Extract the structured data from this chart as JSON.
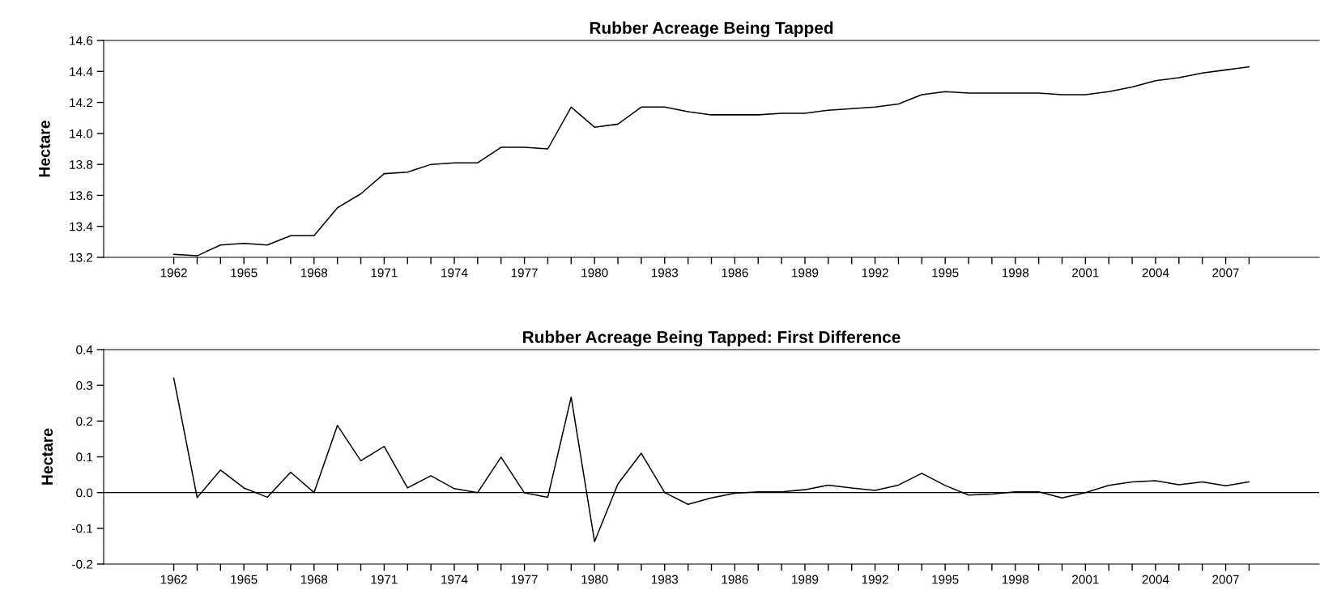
{
  "chart_data": [
    {
      "type": "line",
      "title": "Rubber Acreage Being Tapped",
      "ylabel": "Hectare",
      "x": [
        1962,
        1963,
        1964,
        1965,
        1966,
        1967,
        1968,
        1969,
        1970,
        1971,
        1972,
        1973,
        1974,
        1975,
        1976,
        1977,
        1978,
        1979,
        1980,
        1981,
        1982,
        1983,
        1984,
        1985,
        1986,
        1987,
        1988,
        1989,
        1990,
        1991,
        1992,
        1993,
        1994,
        1995,
        1996,
        1997,
        1998,
        1999,
        2000,
        2001,
        2002,
        2003,
        2004,
        2005,
        2006,
        2007,
        2008
      ],
      "series": [
        {
          "color": "#000000",
          "values": [
            13.22,
            13.21,
            13.28,
            13.29,
            13.28,
            13.34,
            13.34,
            13.52,
            13.61,
            13.74,
            13.75,
            13.8,
            13.81,
            13.81,
            13.91,
            13.91,
            13.9,
            14.17,
            14.04,
            14.06,
            14.17,
            14.17,
            14.14,
            14.12,
            14.12,
            14.12,
            14.13,
            14.13,
            14.15,
            14.16,
            14.17,
            14.19,
            14.25,
            14.27,
            14.26,
            14.26,
            14.26,
            14.26,
            14.25,
            14.25,
            14.27,
            14.3,
            14.34,
            14.36,
            14.39,
            14.41,
            14.43
          ]
        }
      ],
      "xlim": [
        1959,
        2011
      ],
      "xticks": [
        {
          "value": 1962,
          "label": "1962"
        },
        {
          "value": 1963,
          "label": null
        },
        {
          "value": 1964,
          "label": null
        },
        {
          "value": 1965,
          "label": "1965"
        },
        {
          "value": 1966,
          "label": null
        },
        {
          "value": 1967,
          "label": null
        },
        {
          "value": 1968,
          "label": "1968"
        },
        {
          "value": 1969,
          "label": null
        },
        {
          "value": 1970,
          "label": null
        },
        {
          "value": 1971,
          "label": "1971"
        },
        {
          "value": 1972,
          "label": null
        },
        {
          "value": 1973,
          "label": null
        },
        {
          "value": 1974,
          "label": "1974"
        },
        {
          "value": 1975,
          "label": null
        },
        {
          "value": 1976,
          "label": null
        },
        {
          "value": 1977,
          "label": "1977"
        },
        {
          "value": 1978,
          "label": null
        },
        {
          "value": 1979,
          "label": null
        },
        {
          "value": 1980,
          "label": "1980"
        },
        {
          "value": 1981,
          "label": null
        },
        {
          "value": 1982,
          "label": null
        },
        {
          "value": 1983,
          "label": "1983"
        },
        {
          "value": 1984,
          "label": null
        },
        {
          "value": 1985,
          "label": null
        },
        {
          "value": 1986,
          "label": "1986"
        },
        {
          "value": 1987,
          "label": null
        },
        {
          "value": 1988,
          "label": null
        },
        {
          "value": 1989,
          "label": "1989"
        },
        {
          "value": 1990,
          "label": null
        },
        {
          "value": 1991,
          "label": null
        },
        {
          "value": 1992,
          "label": "1992"
        },
        {
          "value": 1993,
          "label": null
        },
        {
          "value": 1994,
          "label": null
        },
        {
          "value": 1995,
          "label": "1995"
        },
        {
          "value": 1996,
          "label": null
        },
        {
          "value": 1997,
          "label": null
        },
        {
          "value": 1998,
          "label": "1998"
        },
        {
          "value": 1999,
          "label": null
        },
        {
          "value": 2000,
          "label": null
        },
        {
          "value": 2001,
          "label": "2001"
        },
        {
          "value": 2002,
          "label": null
        },
        {
          "value": 2003,
          "label": null
        },
        {
          "value": 2004,
          "label": "2004"
        },
        {
          "value": 2005,
          "label": null
        },
        {
          "value": 2006,
          "label": null
        },
        {
          "value": 2007,
          "label": "2007"
        },
        {
          "value": 2008,
          "label": null
        }
      ],
      "ylim": [
        13.2,
        14.6
      ],
      "yticks": [
        {
          "value": 13.2,
          "label": "13.2"
        },
        {
          "value": 13.4,
          "label": "13.4"
        },
        {
          "value": 13.6,
          "label": "13.6"
        },
        {
          "value": 13.8,
          "label": "13.8"
        },
        {
          "value": 14.0,
          "label": "14.0"
        },
        {
          "value": 14.2,
          "label": "14.2"
        },
        {
          "value": 14.4,
          "label": "14.4"
        },
        {
          "value": 14.6,
          "label": "14.6"
        }
      ],
      "grid": false,
      "legend": false
    },
    {
      "type": "line",
      "title": "Rubber Acreage Being Tapped: First Difference",
      "ylabel": "Hectare",
      "x": [
        1962,
        1963,
        1964,
        1965,
        1966,
        1967,
        1968,
        1969,
        1970,
        1971,
        1972,
        1973,
        1974,
        1975,
        1976,
        1977,
        1978,
        1979,
        1980,
        1981,
        1982,
        1983,
        1984,
        1985,
        1986,
        1987,
        1988,
        1989,
        1990,
        1991,
        1992,
        1993,
        1994,
        1995,
        1996,
        1997,
        1998,
        1999,
        2000,
        2001,
        2002,
        2003,
        2004,
        2005,
        2006,
        2007,
        2008
      ],
      "series": [
        {
          "color": "#000000",
          "values": [
            0.32,
            -0.014,
            0.063,
            0.013,
            -0.013,
            0.057,
            0.0,
            0.188,
            0.089,
            0.129,
            0.013,
            0.047,
            0.011,
            0.0,
            0.099,
            -0.001,
            -0.013,
            0.267,
            -0.137,
            0.024,
            0.11,
            0.0,
            -0.033,
            -0.015,
            -0.002,
            0.002,
            0.002,
            0.008,
            0.021,
            0.013,
            0.006,
            0.021,
            0.054,
            0.02,
            -0.007,
            -0.004,
            0.002,
            0.002,
            -0.015,
            0.0,
            0.02,
            0.03,
            0.033,
            0.022,
            0.03,
            0.019,
            0.03
          ]
        }
      ],
      "xlim": [
        1959,
        2011
      ],
      "xticks": [
        {
          "value": 1962,
          "label": "1962"
        },
        {
          "value": 1963,
          "label": null
        },
        {
          "value": 1964,
          "label": null
        },
        {
          "value": 1965,
          "label": "1965"
        },
        {
          "value": 1966,
          "label": null
        },
        {
          "value": 1967,
          "label": null
        },
        {
          "value": 1968,
          "label": "1968"
        },
        {
          "value": 1969,
          "label": null
        },
        {
          "value": 1970,
          "label": null
        },
        {
          "value": 1971,
          "label": "1971"
        },
        {
          "value": 1972,
          "label": null
        },
        {
          "value": 1973,
          "label": null
        },
        {
          "value": 1974,
          "label": "1974"
        },
        {
          "value": 1975,
          "label": null
        },
        {
          "value": 1976,
          "label": null
        },
        {
          "value": 1977,
          "label": "1977"
        },
        {
          "value": 1978,
          "label": null
        },
        {
          "value": 1979,
          "label": null
        },
        {
          "value": 1980,
          "label": "1980"
        },
        {
          "value": 1981,
          "label": null
        },
        {
          "value": 1982,
          "label": null
        },
        {
          "value": 1983,
          "label": "1983"
        },
        {
          "value": 1984,
          "label": null
        },
        {
          "value": 1985,
          "label": null
        },
        {
          "value": 1986,
          "label": "1986"
        },
        {
          "value": 1987,
          "label": null
        },
        {
          "value": 1988,
          "label": null
        },
        {
          "value": 1989,
          "label": "1989"
        },
        {
          "value": 1990,
          "label": null
        },
        {
          "value": 1991,
          "label": null
        },
        {
          "value": 1992,
          "label": "1992"
        },
        {
          "value": 1993,
          "label": null
        },
        {
          "value": 1994,
          "label": null
        },
        {
          "value": 1995,
          "label": "1995"
        },
        {
          "value": 1996,
          "label": null
        },
        {
          "value": 1997,
          "label": null
        },
        {
          "value": 1998,
          "label": "1998"
        },
        {
          "value": 1999,
          "label": null
        },
        {
          "value": 2000,
          "label": null
        },
        {
          "value": 2001,
          "label": "2001"
        },
        {
          "value": 2002,
          "label": null
        },
        {
          "value": 2003,
          "label": null
        },
        {
          "value": 2004,
          "label": "2004"
        },
        {
          "value": 2005,
          "label": null
        },
        {
          "value": 2006,
          "label": null
        },
        {
          "value": 2007,
          "label": "2007"
        },
        {
          "value": 2008,
          "label": null
        }
      ],
      "ylim": [
        -0.2,
        0.4
      ],
      "yticks": [
        {
          "value": -0.2,
          "label": "-0.2"
        },
        {
          "value": -0.1,
          "label": "-0.1"
        },
        {
          "value": 0.0,
          "label": "0.0"
        },
        {
          "value": 0.1,
          "label": "0.1"
        },
        {
          "value": 0.2,
          "label": "0.2"
        },
        {
          "value": 0.3,
          "label": "0.3"
        },
        {
          "value": 0.4,
          "label": "0.4"
        }
      ],
      "ref_lines": [
        {
          "axis": "y",
          "value": 0,
          "color": "#000000"
        }
      ],
      "grid": false,
      "legend": false
    }
  ]
}
